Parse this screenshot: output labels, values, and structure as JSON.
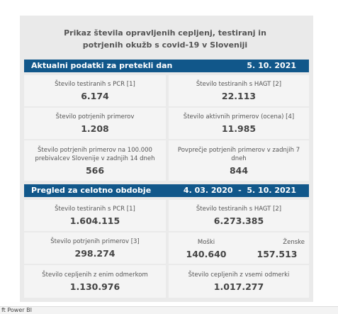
{
  "title": "Prikaz števila opravljenih cepljenj, testiranj in potrjenih okužb s covid-19 v Sloveniji",
  "sections": [
    {
      "header": "Aktualni podatki za pretekli dan",
      "date": "5. 10. 2021",
      "cells": [
        {
          "label": "Število testiranih s PCR [1]",
          "value": "6.174"
        },
        {
          "label": "Število testiranih s HAGT [2]",
          "value": "22.113"
        },
        {
          "label": "Število potrjenih primerov",
          "value": "1.208"
        },
        {
          "label": "Število aktivnih primerov (ocena) [4]",
          "value": "11.985"
        },
        {
          "label": "Število potrjenih primerov na 100.000 prebivalcev Slovenije v zadnjih 14 dneh",
          "value": "566"
        },
        {
          "label": "Povprečje potrjenih primerov v zadnjih 7 dneh",
          "value": "844"
        }
      ]
    },
    {
      "header": "Pregled za celotno obdobje",
      "date": "4. 03. 2020  -  5. 10. 2021",
      "cells": [
        {
          "label": "Število testiranih s PCR [1]",
          "value": "1.604.115"
        },
        {
          "label": "Število testiranih s HAGT [2]",
          "value": "6.273.385"
        },
        {
          "label": "Število potrjenih primerov [3]",
          "value": "298.274"
        },
        {
          "groups": [
            {
              "label": "Moški",
              "value": "140.640"
            },
            {
              "label": "Ženske",
              "value": "157.513"
            }
          ]
        },
        {
          "label": "Število cepljenih z enim odmerkom",
          "value": "1.130.976"
        },
        {
          "label": "Število cepljenih z vsemi odmerki",
          "value": "1.017.277"
        }
      ]
    }
  ],
  "footer": "ft Power BI"
}
